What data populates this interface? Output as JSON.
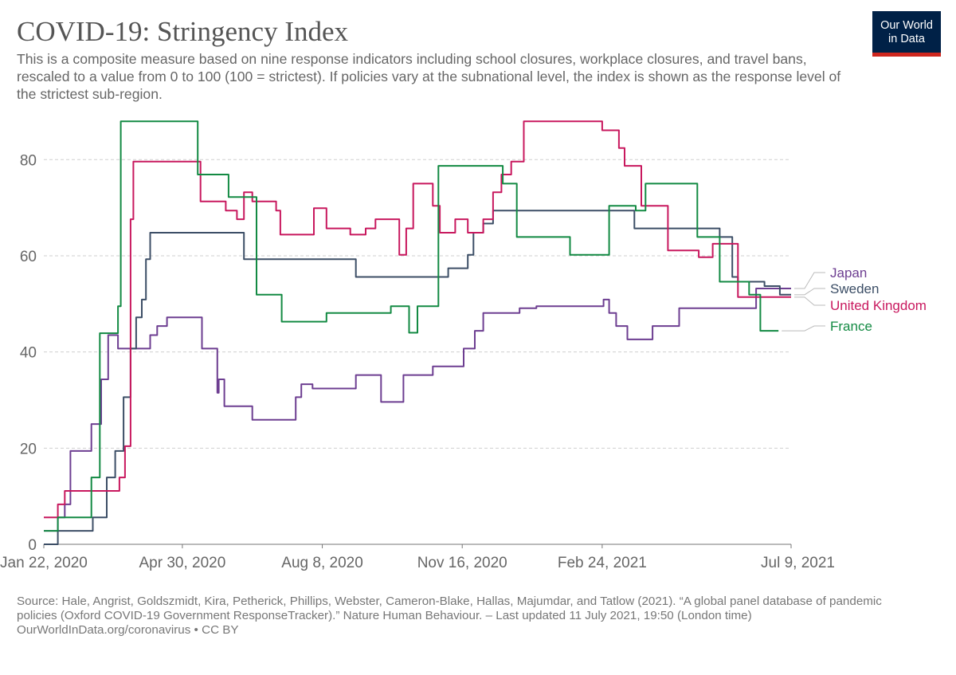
{
  "header": {
    "title": "COVID-19: Stringency Index",
    "subtitle": "This is a composite measure based on nine response indicators including school closures, workplace closures, and travel bans, rescaled to a value from 0 to 100 (100 = strictest). If policies vary at the subnational level, the index is shown as the response level of the strictest sub-region."
  },
  "logo": {
    "line1": "Our World",
    "line2": "in Data",
    "bg_color": "#002147",
    "accent_color": "#ce261e"
  },
  "footer": {
    "source": "Source: Hale, Angrist, Goldszmidt, Kira, Petherick, Phillips, Webster, Cameron-Blake, Hallas, Majumdar, and Tatlow (2021). “A global panel database of pandemic policies (Oxford COVID-19 Government ResponseTracker).” Nature Human Behaviour. – Last updated 11 July 2021, 19:50 (London time)",
    "license": "OurWorldInData.org/coronavirus • CC BY"
  },
  "chart_data": {
    "type": "line",
    "title": "COVID-19: Stringency Index",
    "x_type": "date",
    "xlim": [
      "2020-01-22",
      "2021-07-09"
    ],
    "x_ticks": [
      {
        "date": "2020-01-22",
        "label": "Jan 22, 2020"
      },
      {
        "date": "2020-04-30",
        "label": "Apr 30, 2020"
      },
      {
        "date": "2020-08-08",
        "label": "Aug 8, 2020"
      },
      {
        "date": "2020-11-16",
        "label": "Nov 16, 2020"
      },
      {
        "date": "2021-02-24",
        "label": "Feb 24, 2021"
      },
      {
        "date": "2021-07-09",
        "label": "Jul 9, 2021"
      }
    ],
    "ylim": [
      0,
      88
    ],
    "y_ticks": [
      0,
      20,
      40,
      60,
      80
    ],
    "grid": "horizontal-dashed",
    "legend": "right-end-labels",
    "series": [
      {
        "name": "Japan",
        "color": "#6d3e91",
        "points": [
          [
            "2020-01-22",
            2.8
          ],
          [
            "2020-02-01",
            5.6
          ],
          [
            "2020-02-06",
            8.3
          ],
          [
            "2020-02-10",
            19.4
          ],
          [
            "2020-02-25",
            25.0
          ],
          [
            "2020-03-03",
            34.3
          ],
          [
            "2020-03-08",
            43.5
          ],
          [
            "2020-03-15",
            40.7
          ],
          [
            "2020-04-07",
            43.5
          ],
          [
            "2020-04-12",
            45.4
          ],
          [
            "2020-04-19",
            47.2
          ],
          [
            "2020-05-14",
            40.7
          ],
          [
            "2020-05-25",
            31.5
          ],
          [
            "2020-05-26",
            34.3
          ],
          [
            "2020-05-30",
            28.7
          ],
          [
            "2020-06-19",
            25.9
          ],
          [
            "2020-07-20",
            30.6
          ],
          [
            "2020-07-24",
            33.3
          ],
          [
            "2020-08-01",
            32.4
          ],
          [
            "2020-09-01",
            35.2
          ],
          [
            "2020-09-19",
            29.6
          ],
          [
            "2020-10-05",
            35.2
          ],
          [
            "2020-10-26",
            37.0
          ],
          [
            "2020-11-17",
            40.7
          ],
          [
            "2020-11-25",
            44.4
          ],
          [
            "2020-12-01",
            48.1
          ],
          [
            "2020-12-27",
            49.1
          ],
          [
            "2021-01-08",
            49.5
          ],
          [
            "2021-02-25",
            50.9
          ],
          [
            "2021-03-01",
            48.1
          ],
          [
            "2021-03-06",
            45.4
          ],
          [
            "2021-03-14",
            42.6
          ],
          [
            "2021-04-01",
            45.4
          ],
          [
            "2021-04-20",
            49.1
          ],
          [
            "2021-05-30",
            49.1
          ],
          [
            "2021-06-14",
            53.2
          ],
          [
            "2021-07-09",
            53.2
          ]
        ]
      },
      {
        "name": "Sweden",
        "color": "#3c4e66",
        "points": [
          [
            "2020-01-22",
            0.0
          ],
          [
            "2020-02-01",
            2.8
          ],
          [
            "2020-02-26",
            5.6
          ],
          [
            "2020-03-07",
            13.9
          ],
          [
            "2020-03-13",
            19.4
          ],
          [
            "2020-03-19",
            30.6
          ],
          [
            "2020-03-24",
            40.7
          ],
          [
            "2020-03-28",
            47.2
          ],
          [
            "2020-04-01",
            50.9
          ],
          [
            "2020-04-04",
            59.3
          ],
          [
            "2020-04-07",
            64.8
          ],
          [
            "2020-06-13",
            59.3
          ],
          [
            "2020-09-01",
            55.6
          ],
          [
            "2020-11-06",
            57.4
          ],
          [
            "2020-11-20",
            60.2
          ],
          [
            "2020-11-24",
            64.8
          ],
          [
            "2020-12-01",
            66.7
          ],
          [
            "2020-12-08",
            69.4
          ],
          [
            "2021-03-10",
            69.4
          ],
          [
            "2021-03-19",
            65.7
          ],
          [
            "2021-05-01",
            65.7
          ],
          [
            "2021-05-19",
            63.9
          ],
          [
            "2021-05-28",
            55.6
          ],
          [
            "2021-06-01",
            54.6
          ],
          [
            "2021-06-20",
            53.7
          ],
          [
            "2021-07-01",
            51.9
          ],
          [
            "2021-07-09",
            51.9
          ]
        ]
      },
      {
        "name": "United Kingdom",
        "color": "#c8185e",
        "points": [
          [
            "2020-01-22",
            5.6
          ],
          [
            "2020-02-01",
            8.3
          ],
          [
            "2020-02-06",
            11.1
          ],
          [
            "2020-03-16",
            13.9
          ],
          [
            "2020-03-20",
            20.4
          ],
          [
            "2020-03-24",
            67.6
          ],
          [
            "2020-03-26",
            79.6
          ],
          [
            "2020-05-13",
            71.3
          ],
          [
            "2020-05-31",
            69.4
          ],
          [
            "2020-06-08",
            67.6
          ],
          [
            "2020-06-13",
            73.2
          ],
          [
            "2020-06-19",
            71.3
          ],
          [
            "2020-07-06",
            69.4
          ],
          [
            "2020-07-09",
            64.4
          ],
          [
            "2020-08-02",
            69.9
          ],
          [
            "2020-08-11",
            65.7
          ],
          [
            "2020-08-28",
            64.4
          ],
          [
            "2020-09-08",
            65.7
          ],
          [
            "2020-09-15",
            67.6
          ],
          [
            "2020-10-02",
            60.2
          ],
          [
            "2020-10-07",
            65.7
          ],
          [
            "2020-10-12",
            75.0
          ],
          [
            "2020-10-26",
            70.4
          ],
          [
            "2020-10-31",
            64.8
          ],
          [
            "2020-11-11",
            67.6
          ],
          [
            "2020-11-20",
            64.8
          ],
          [
            "2020-12-01",
            67.6
          ],
          [
            "2020-12-08",
            73.2
          ],
          [
            "2020-12-14",
            76.9
          ],
          [
            "2020-12-21",
            79.6
          ],
          [
            "2020-12-30",
            87.96
          ],
          [
            "2021-02-24",
            86.1
          ],
          [
            "2021-03-08",
            82.4
          ],
          [
            "2021-03-12",
            78.7
          ],
          [
            "2021-03-24",
            70.4
          ],
          [
            "2021-04-12",
            61.1
          ],
          [
            "2021-05-04",
            59.7
          ],
          [
            "2021-05-14",
            62.5
          ],
          [
            "2021-06-01",
            51.4
          ],
          [
            "2021-07-09",
            51.4
          ]
        ]
      },
      {
        "name": "France",
        "color": "#138a43",
        "points": [
          [
            "2020-01-22",
            2.8
          ],
          [
            "2020-02-01",
            5.6
          ],
          [
            "2020-02-25",
            13.9
          ],
          [
            "2020-03-02",
            43.9
          ],
          [
            "2020-03-15",
            49.5
          ],
          [
            "2020-03-17",
            87.96
          ],
          [
            "2020-05-11",
            76.9
          ],
          [
            "2020-06-02",
            72.2
          ],
          [
            "2020-06-22",
            51.9
          ],
          [
            "2020-07-10",
            46.3
          ],
          [
            "2020-08-11",
            48.1
          ],
          [
            "2020-09-07",
            48.1
          ],
          [
            "2020-09-26",
            49.5
          ],
          [
            "2020-10-09",
            44.0
          ],
          [
            "2020-10-15",
            49.5
          ],
          [
            "2020-10-30",
            78.7
          ],
          [
            "2020-12-15",
            75.0
          ],
          [
            "2020-12-25",
            63.9
          ],
          [
            "2021-01-16",
            63.9
          ],
          [
            "2021-02-01",
            60.2
          ],
          [
            "2021-03-01",
            70.4
          ],
          [
            "2021-03-20",
            69.4
          ],
          [
            "2021-03-27",
            75.0
          ],
          [
            "2021-05-03",
            63.9
          ],
          [
            "2021-05-19",
            54.6
          ],
          [
            "2021-06-09",
            51.9
          ],
          [
            "2021-06-17",
            44.4
          ],
          [
            "2021-06-30",
            44.4
          ]
        ]
      }
    ]
  }
}
